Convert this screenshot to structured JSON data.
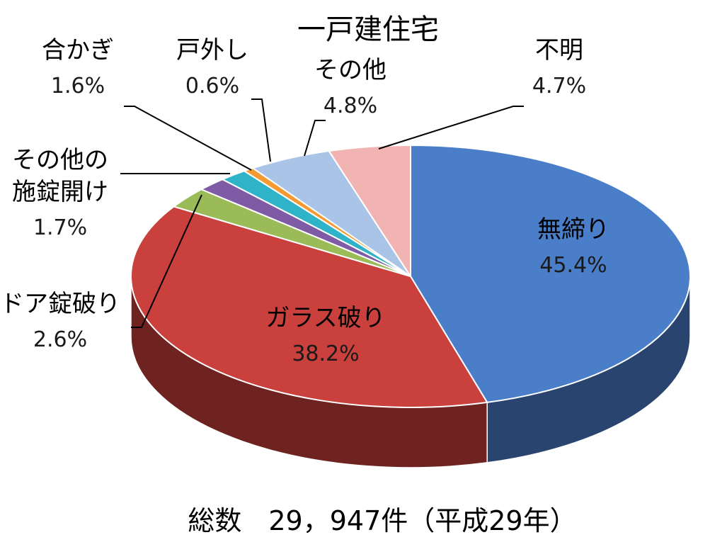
{
  "chart_data": {
    "type": "pie",
    "title": "一戸建住宅",
    "total_label": "総数　29，947件（平成29年）",
    "slices": [
      {
        "label": [
          "無締り"
        ],
        "value": 45.4,
        "value_label": "45.4%",
        "color": "#4a7ec9"
      },
      {
        "label": [
          "ガラス破り"
        ],
        "value": 38.2,
        "value_label": "38.2%",
        "color": "#c9403c"
      },
      {
        "label": [
          "ドア錠破り"
        ],
        "value": 2.6,
        "value_label": "2.6%",
        "color": "#9bbb59"
      },
      {
        "label": [
          "その他の",
          "施錠開け"
        ],
        "value": 1.7,
        "value_label": "1.7%",
        "color": "#7f5ba6"
      },
      {
        "label": [
          "合かぎ"
        ],
        "value": 1.6,
        "value_label": "1.6%",
        "color": "#2fb3c9"
      },
      {
        "label": [
          "戸外し"
        ],
        "value": 0.6,
        "value_label": "0.6%",
        "color": "#f39a33"
      },
      {
        "label": [
          "その他"
        ],
        "value": 4.8,
        "value_label": "4.8%",
        "color": "#aac4e8"
      },
      {
        "label": [
          "不明"
        ],
        "value": 4.7,
        "value_label": "4.7%",
        "color": "#f2b3b3"
      }
    ],
    "label_color": "#000000",
    "value_color": "#1a1a1a"
  }
}
